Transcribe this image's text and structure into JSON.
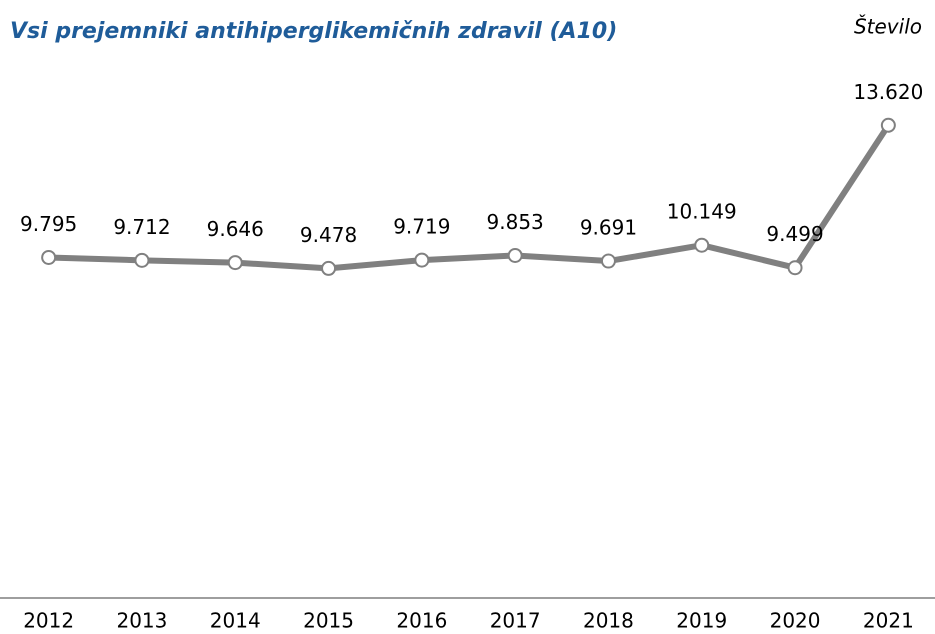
{
  "chart_data": {
    "type": "line",
    "title": "Vsi prejemniki  antihiperglikemičnih  zdravil (A10)",
    "y_label": "Število",
    "categories": [
      "2012",
      "2013",
      "2014",
      "2015",
      "2016",
      "2017",
      "2018",
      "2019",
      "2020",
      "2021"
    ],
    "series": [
      {
        "name": "Vsi prejemniki",
        "color": "#808080",
        "values": [
          9795,
          9712,
          9646,
          9478,
          9719,
          9853,
          9691,
          10149,
          9499,
          13620
        ],
        "value_labels": [
          "9.795",
          "9.712",
          "9.646",
          "9.478",
          "9.719",
          "9.853",
          "9.691",
          "10.149",
          "9.499",
          "13.620"
        ]
      }
    ],
    "ylim": [
      0,
      16000
    ]
  }
}
